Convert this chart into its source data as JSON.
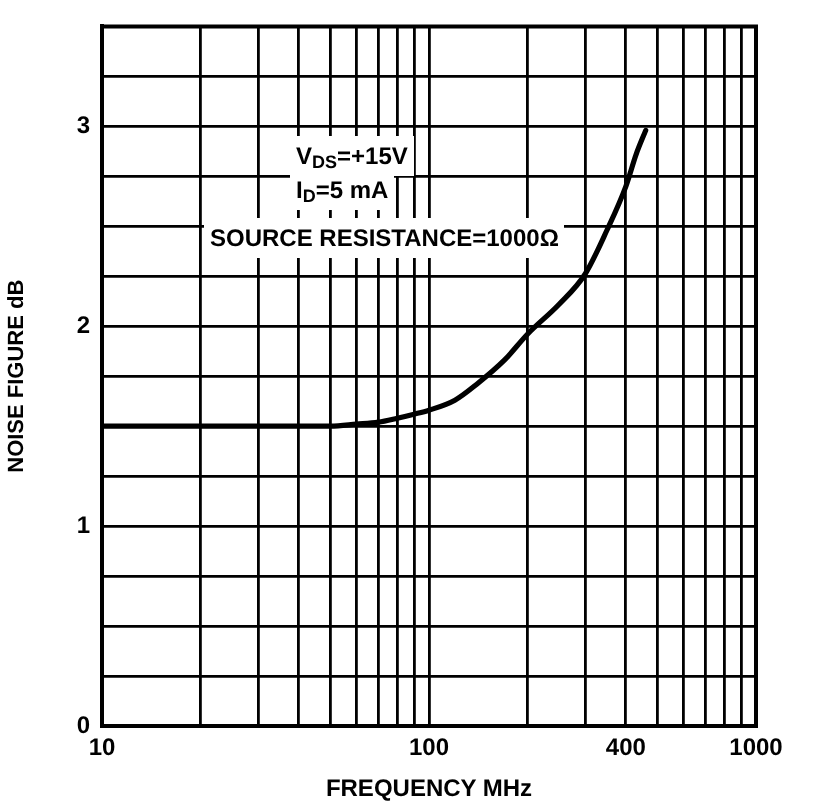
{
  "chart_data": {
    "type": "line",
    "xlabel": "FREQUENCY MHz",
    "ylabel": "NOISE FIGURE dB",
    "x": [
      10,
      20,
      30,
      40,
      50,
      60,
      70,
      80,
      90,
      100,
      120,
      140,
      170,
      200,
      250,
      300,
      350,
      400,
      430,
      460
    ],
    "series": [
      {
        "color": "#000000",
        "values": [
          1.5,
          1.5,
          1.5,
          1.5,
          1.5,
          1.51,
          1.52,
          1.54,
          1.56,
          1.58,
          1.63,
          1.71,
          1.83,
          1.96,
          2.11,
          2.26,
          2.48,
          2.7,
          2.86,
          2.98
        ]
      }
    ],
    "xlim": [
      10,
      1000
    ],
    "ylim": [
      0,
      3.5
    ],
    "xticks": [
      10,
      {
        "value": 20,
        "label": null
      },
      {
        "value": 30,
        "label": null
      },
      {
        "value": 40,
        "label": null
      },
      {
        "value": 50,
        "label": null
      },
      {
        "value": 60,
        "label": null
      },
      {
        "value": 70,
        "label": null
      },
      {
        "value": 80,
        "label": null
      },
      {
        "value": 90,
        "label": null
      },
      100,
      {
        "value": 200,
        "label": null
      },
      {
        "value": 300,
        "label": null
      },
      400,
      {
        "value": 500,
        "label": null
      },
      {
        "value": 600,
        "label": null
      },
      {
        "value": 700,
        "label": null
      },
      {
        "value": 800,
        "label": null
      },
      {
        "value": 900,
        "label": null
      },
      1000
    ],
    "yticks": [
      0,
      {
        "value": 0.25,
        "label": null
      },
      {
        "value": 0.5,
        "label": null
      },
      {
        "value": 0.75,
        "label": null
      },
      1,
      {
        "value": 1.25,
        "label": null
      },
      {
        "value": 1.5,
        "label": null
      },
      {
        "value": 1.75,
        "label": null
      },
      2,
      {
        "value": 2.25,
        "label": null
      },
      {
        "value": 2.5,
        "label": null
      },
      {
        "value": 2.75,
        "label": null
      },
      3,
      {
        "value": 3.25,
        "label": null
      }
    ],
    "log": "x",
    "grid": true,
    "marker": "none",
    "annotations": [
      "V$_{DS}$=+15V",
      "I$_{D}$=5 mA",
      "SOURCE RESISTANCE=1000Ω"
    ]
  }
}
